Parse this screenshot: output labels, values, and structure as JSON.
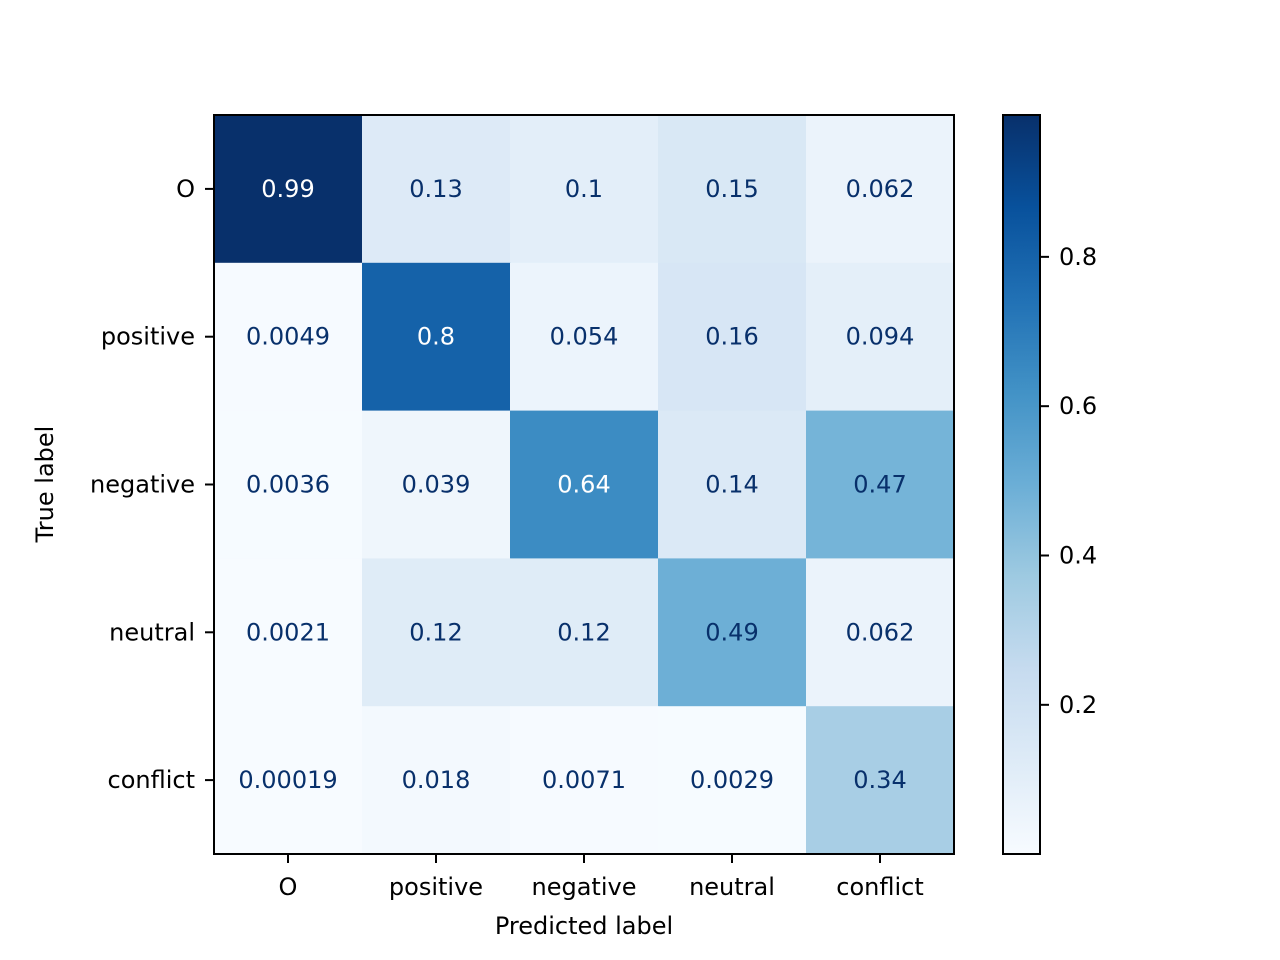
{
  "chart_data": {
    "type": "heatmap",
    "title": "",
    "xlabel": "Predicted label",
    "ylabel": "True label",
    "x_categories": [
      "O",
      "positive",
      "negative",
      "neutral",
      "conflict"
    ],
    "y_categories": [
      "O",
      "positive",
      "negative",
      "neutral",
      "conflict"
    ],
    "values": [
      [
        0.99,
        0.13,
        0.1,
        0.15,
        0.062
      ],
      [
        0.0049,
        0.8,
        0.054,
        0.16,
        0.094
      ],
      [
        0.0036,
        0.039,
        0.64,
        0.14,
        0.47
      ],
      [
        0.0021,
        0.12,
        0.12,
        0.49,
        0.062
      ],
      [
        0.00019,
        0.018,
        0.0071,
        0.0029,
        0.34
      ]
    ],
    "value_labels": [
      [
        "0.99",
        "0.13",
        "0.1",
        "0.15",
        "0.062"
      ],
      [
        "0.0049",
        "0.8",
        "0.054",
        "0.16",
        "0.094"
      ],
      [
        "0.0036",
        "0.039",
        "0.64",
        "0.14",
        "0.47"
      ],
      [
        "0.0021",
        "0.12",
        "0.12",
        "0.49",
        "0.062"
      ],
      [
        "0.00019",
        "0.018",
        "0.0071",
        "0.0029",
        "0.34"
      ]
    ],
    "colormap": "Blues",
    "color_range": [
      0.00019,
      0.99
    ],
    "colorbar_ticks": [
      0.2,
      0.4,
      0.6,
      0.8
    ],
    "colorbar_tick_labels": [
      "0.2",
      "0.4",
      "0.6",
      "0.8"
    ],
    "text_color_dark": "#08306b",
    "text_color_light": "#ffffff"
  }
}
